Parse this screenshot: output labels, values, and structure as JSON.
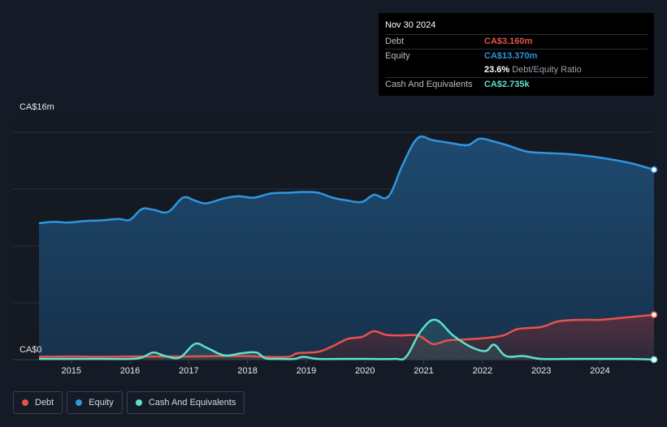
{
  "tooltip": {
    "date": "Nov 30 2024",
    "debt_label": "Debt",
    "debt_value": "CA$3.160m",
    "equity_label": "Equity",
    "equity_value": "CA$13.370m",
    "ratio_value": "23.6%",
    "ratio_label": "Debt/Equity Ratio",
    "cash_label": "Cash And Equivalents",
    "cash_value": "CA$2.735k"
  },
  "legend": {
    "debt": "Debt",
    "equity": "Equity",
    "cash": "Cash And Equivalents"
  },
  "colors": {
    "debt": "#e5534b",
    "equity": "#2f96e0",
    "cash": "#5fe0c8",
    "background": "#151b26"
  },
  "chart_data": {
    "type": "area",
    "title": "",
    "xlabel": "",
    "ylabel": "",
    "ylim": [
      0,
      16
    ],
    "xlim": [
      2014.45,
      2024.92
    ],
    "y_tick_labels": [
      "CA$16m",
      "CA$0"
    ],
    "x_tick_labels": [
      "2015",
      "2016",
      "2017",
      "2018",
      "2019",
      "2020",
      "2021",
      "2022",
      "2023",
      "2024"
    ],
    "x_ticks": [
      2015,
      2016,
      2017,
      2018,
      2019,
      2020,
      2021,
      2022,
      2023,
      2024
    ],
    "series": [
      {
        "name": "Equity",
        "x": [
          2014.45,
          2014.7,
          2014.95,
          2015.2,
          2015.5,
          2015.8,
          2016.0,
          2016.2,
          2016.4,
          2016.65,
          2016.9,
          2017.1,
          2017.3,
          2017.6,
          2017.85,
          2018.1,
          2018.4,
          2018.7,
          2018.95,
          2019.2,
          2019.45,
          2019.7,
          2019.95,
          2020.15,
          2020.4,
          2020.65,
          2020.9,
          2021.15,
          2021.45,
          2021.75,
          2021.95,
          2022.2,
          2022.45,
          2022.75,
          2023.05,
          2023.35,
          2023.65,
          2023.95,
          2024.25,
          2024.55,
          2024.92
        ],
        "values": [
          9.6,
          9.7,
          9.65,
          9.75,
          9.8,
          9.9,
          9.85,
          10.6,
          10.55,
          10.4,
          11.4,
          11.2,
          11.0,
          11.35,
          11.5,
          11.4,
          11.7,
          11.75,
          11.8,
          11.75,
          11.4,
          11.2,
          11.1,
          11.6,
          11.5,
          13.8,
          15.6,
          15.45,
          15.25,
          15.1,
          15.55,
          15.35,
          15.05,
          14.65,
          14.55,
          14.5,
          14.4,
          14.25,
          14.05,
          13.8,
          13.37
        ]
      },
      {
        "name": "Debt",
        "x": [
          2014.45,
          2015.0,
          2015.5,
          2016.0,
          2016.5,
          2017.0,
          2017.5,
          2018.0,
          2018.3,
          2018.7,
          2018.85,
          2019.2,
          2019.45,
          2019.7,
          2019.95,
          2020.15,
          2020.35,
          2020.6,
          2020.9,
          2021.1,
          2021.2,
          2021.4,
          2021.6,
          2022.0,
          2022.35,
          2022.6,
          2023.0,
          2023.3,
          2023.7,
          2024.0,
          2024.4,
          2024.92
        ],
        "values": [
          0.2,
          0.22,
          0.2,
          0.22,
          0.22,
          0.22,
          0.25,
          0.25,
          0.2,
          0.2,
          0.45,
          0.55,
          0.95,
          1.45,
          1.6,
          2.0,
          1.75,
          1.7,
          1.7,
          1.2,
          1.1,
          1.35,
          1.4,
          1.5,
          1.7,
          2.15,
          2.3,
          2.7,
          2.8,
          2.8,
          2.95,
          3.16
        ]
      },
      {
        "name": "Cash And Equivalents",
        "x": [
          2014.45,
          2015.0,
          2015.5,
          2016.0,
          2016.2,
          2016.4,
          2016.6,
          2016.85,
          2017.1,
          2017.3,
          2017.6,
          2017.9,
          2018.15,
          2018.3,
          2018.5,
          2018.8,
          2018.95,
          2019.2,
          2019.6,
          2020.0,
          2020.5,
          2020.7,
          2020.95,
          2021.2,
          2021.5,
          2021.8,
          2022.05,
          2022.2,
          2022.4,
          2022.7,
          2023.0,
          2023.5,
          2024.0,
          2024.5,
          2024.92
        ],
        "values": [
          0.05,
          0.05,
          0.05,
          0.05,
          0.15,
          0.5,
          0.25,
          0.15,
          1.1,
          0.85,
          0.3,
          0.45,
          0.5,
          0.1,
          0.05,
          0.05,
          0.2,
          0.05,
          0.05,
          0.05,
          0.05,
          0.2,
          2.0,
          2.8,
          1.7,
          0.9,
          0.6,
          1.05,
          0.25,
          0.25,
          0.05,
          0.05,
          0.05,
          0.05,
          0.003
        ]
      }
    ]
  }
}
